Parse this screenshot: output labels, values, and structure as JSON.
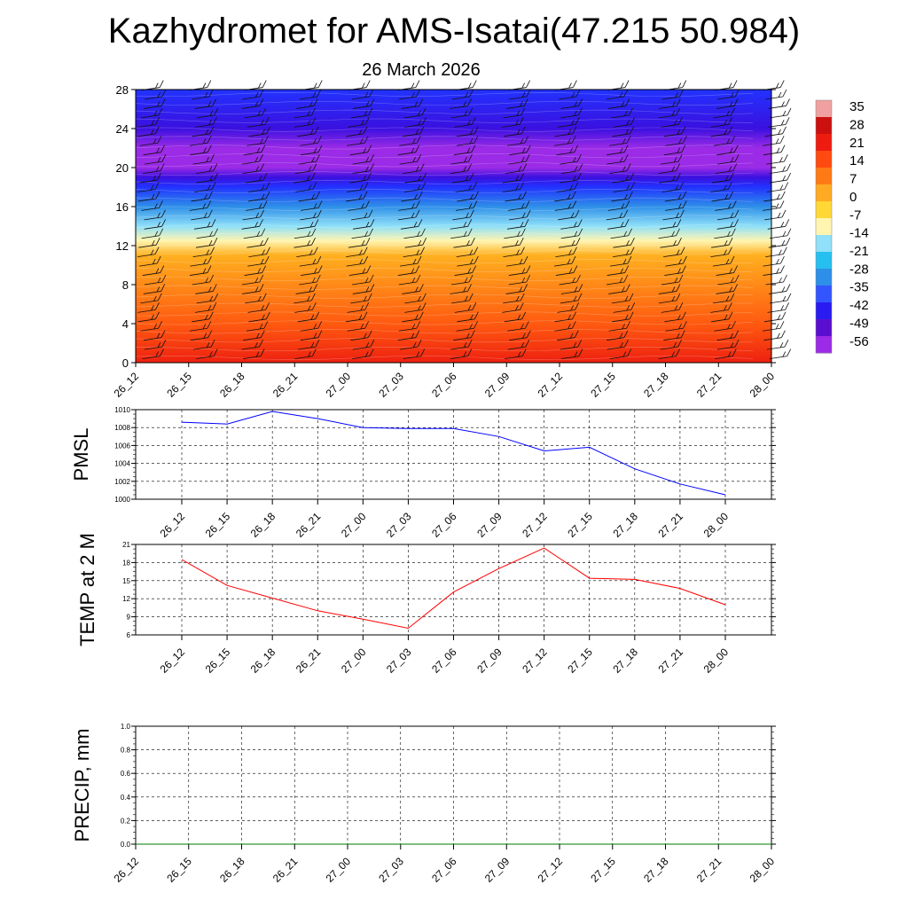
{
  "title": "Kazhydromet for AMS-Isatai(47.215 50.984)",
  "subtitle": "26 March 2026",
  "time_labels": [
    "26_12",
    "26_15",
    "26_18",
    "26_21",
    "27_00",
    "27_03",
    "27_06",
    "27_09",
    "27_12",
    "27_15",
    "27_18",
    "27_21",
    "28_00"
  ],
  "chart_data": [
    {
      "type": "heatmap",
      "ylim": [
        0,
        28
      ],
      "y_ticks": [
        0,
        4,
        8,
        12,
        16,
        20,
        24,
        28
      ],
      "x_tick_labels": [
        "26_12",
        "26_15",
        "26_18",
        "26_21",
        "27_00",
        "27_03",
        "27_06",
        "27_09",
        "27_12",
        "27_15",
        "27_18",
        "27_21",
        "28_00"
      ],
      "colorbar": {
        "labels": [
          "35",
          "28",
          "21",
          "14",
          "7",
          "0",
          "-7",
          "-14",
          "-21",
          "-28",
          "-35",
          "-42",
          "-49",
          "-56"
        ],
        "colors": [
          "#9b2be6",
          "#5a0fd0",
          "#2a1cf0",
          "#3355ff",
          "#2e8fe8",
          "#25bff0",
          "#8fe0f8",
          "#fff5b0",
          "#ffd836",
          "#ffaa22",
          "#ff7a14",
          "#ff4a10",
          "#ee1c10",
          "#cc1010",
          "#f0a0a0"
        ]
      },
      "field_profile": [
        {
          "level": 0,
          "value": 14
        },
        {
          "level": 4,
          "value": 12
        },
        {
          "level": 8,
          "value": 8
        },
        {
          "level": 11,
          "value": 3
        },
        {
          "level": 12.5,
          "value": -12
        },
        {
          "level": 14,
          "value": -28
        },
        {
          "level": 16,
          "value": -38
        },
        {
          "level": 18,
          "value": -52
        },
        {
          "level": 19,
          "value": -58
        },
        {
          "level": 20,
          "value": -63
        },
        {
          "level": 22,
          "value": -63
        },
        {
          "level": 24,
          "value": -58
        },
        {
          "level": 28,
          "value": -56
        }
      ],
      "wind_barbs": true
    },
    {
      "type": "line",
      "ylabel": "PMSL",
      "ylim": [
        1000,
        1010
      ],
      "y_ticks": [
        1000,
        1002,
        1004,
        1006,
        1008,
        1010
      ],
      "x": [
        "26_12",
        "26_15",
        "26_18",
        "26_21",
        "27_00",
        "27_03",
        "27_06",
        "27_09",
        "27_12",
        "27_15",
        "27_18",
        "27_21",
        "28_00"
      ],
      "series": [
        {
          "values": [
            1008.6,
            1008.4,
            1009.8,
            1009.0,
            1008.0,
            1007.9,
            1007.9,
            1007.0,
            1005.4,
            1005.8,
            1003.4,
            1001.7,
            1000.5
          ],
          "color": "#0000ff"
        }
      ],
      "grid": true
    },
    {
      "type": "line",
      "ylabel": "TEMP at 2 M",
      "ylim": [
        6,
        21
      ],
      "y_ticks": [
        6,
        9,
        12,
        15,
        18,
        21
      ],
      "x": [
        "26_12",
        "26_15",
        "26_18",
        "26_21",
        "27_00",
        "27_03",
        "27_06",
        "27_09",
        "27_12",
        "27_15",
        "27_18",
        "27_21",
        "28_00"
      ],
      "series": [
        {
          "values": [
            18.5,
            14.2,
            12.1,
            10.0,
            8.6,
            7.1,
            13.1,
            17.0,
            20.4,
            15.4,
            15.2,
            13.7,
            11.0
          ],
          "color": "#ff0000"
        }
      ],
      "grid": true
    },
    {
      "type": "line",
      "ylabel": "PRECIP, mm",
      "ylim": [
        0.0,
        1.0
      ],
      "y_tick_labels": [
        "0.0",
        "0.2",
        "0.4",
        "0.6",
        "0.8",
        "1.0"
      ],
      "x": [
        "26_12",
        "26_15",
        "26_18",
        "26_21",
        "27_00",
        "27_03",
        "27_06",
        "27_09",
        "27_12",
        "27_15",
        "27_18",
        "27_21",
        "28_00"
      ],
      "series": [
        {
          "values": [
            0,
            0,
            0,
            0,
            0,
            0,
            0,
            0,
            0,
            0,
            0,
            0,
            0
          ],
          "color": "#007a00"
        }
      ],
      "grid": true
    }
  ]
}
